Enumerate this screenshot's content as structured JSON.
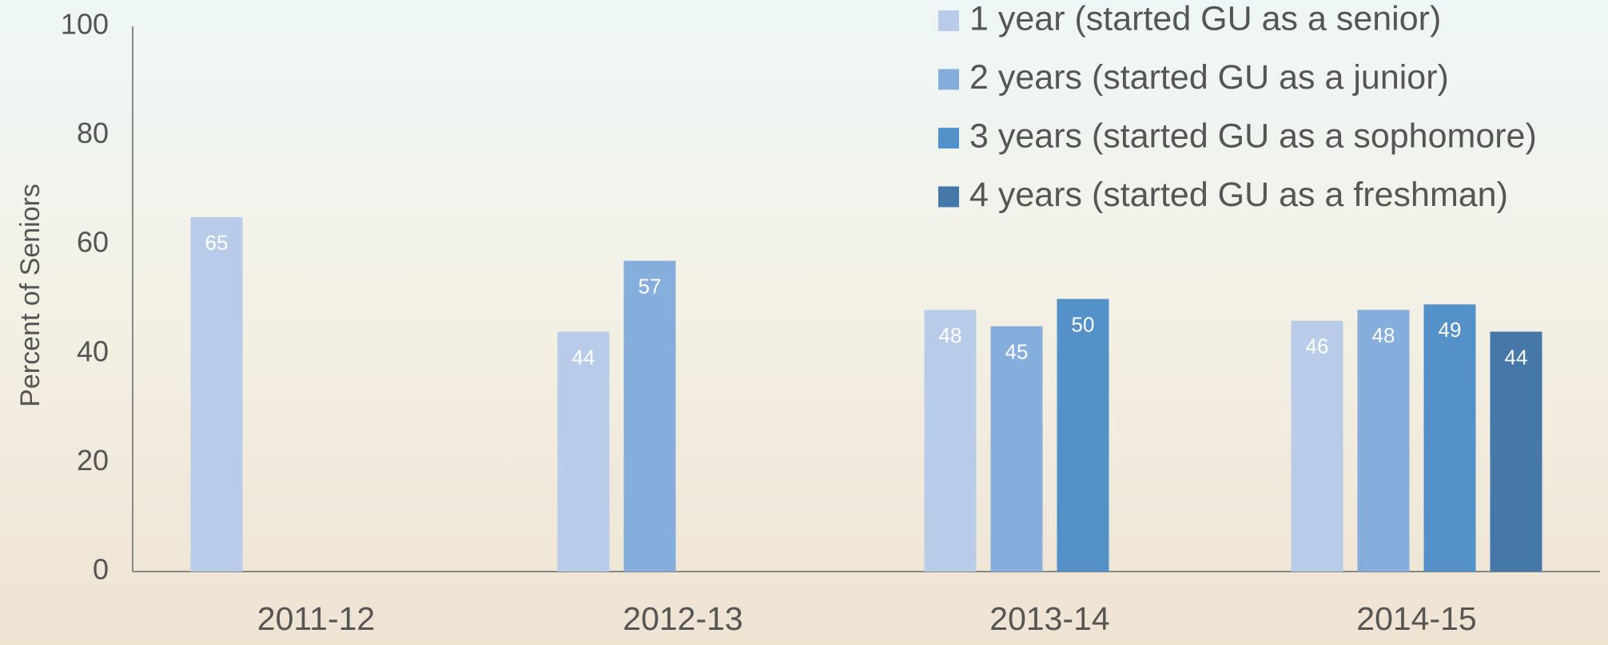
{
  "chart_data": {
    "type": "bar",
    "y_label": "Percent of Seniors",
    "categories": [
      "2011-12",
      "2012-13",
      "2013-14",
      "2014-15"
    ],
    "series": [
      {
        "name": "1 year (started GU as a senior)",
        "color": "#b8cce9",
        "values": [
          65,
          44,
          48,
          46
        ]
      },
      {
        "name": "2 years (started GU as a junior)",
        "color": "#85aedd",
        "values": [
          null,
          57,
          45,
          48
        ]
      },
      {
        "name": "3 years (started GU as a sophomore)",
        "color": "#5591c9",
        "values": [
          null,
          null,
          50,
          49
        ]
      },
      {
        "name": "4 years (started GU as a freshman)",
        "color": "#4577a8",
        "values": [
          null,
          null,
          null,
          44
        ]
      }
    ],
    "ylim": [
      0,
      100
    ],
    "yticks": [
      0,
      20,
      40,
      60,
      80,
      100
    ],
    "grid": false,
    "legend": "top-right",
    "data_labels": true
  }
}
